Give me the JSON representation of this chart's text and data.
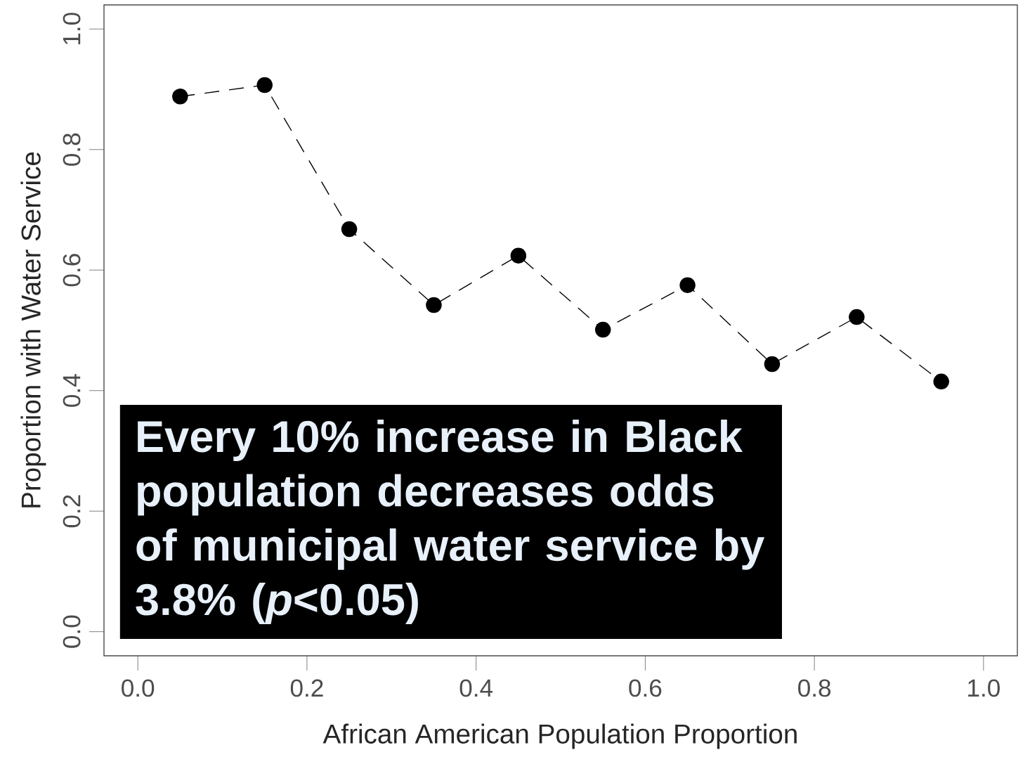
{
  "chart_data": {
    "type": "line",
    "xlabel": "African American Population Proportion",
    "ylabel": "Proportion with Water Service",
    "x": [
      0.05,
      0.15,
      0.25,
      0.35,
      0.45,
      0.55,
      0.65,
      0.75,
      0.85,
      0.95
    ],
    "values": [
      0.888,
      0.907,
      0.668,
      0.542,
      0.624,
      0.501,
      0.575,
      0.444,
      0.522,
      0.415
    ],
    "color": "#000000",
    "marker": "circle",
    "line_style": "dashed",
    "xlim": [
      -0.04,
      1.04
    ],
    "ylim": [
      -0.04,
      1.04
    ],
    "xticks": [
      {
        "value": 0,
        "label": "0.0"
      },
      {
        "value": 0.2,
        "label": "0.2"
      },
      {
        "value": 0.4,
        "label": "0.4"
      },
      {
        "value": 0.6,
        "label": "0.6"
      },
      {
        "value": 0.8,
        "label": "0.8"
      },
      {
        "value": 1,
        "label": "1.0"
      }
    ],
    "yticks": [
      {
        "value": 0,
        "label": "0.0"
      },
      {
        "value": 0.2,
        "label": "0.2"
      },
      {
        "value": 0.4,
        "label": "0.4"
      },
      {
        "value": 0.6,
        "label": "0.6"
      },
      {
        "value": 0.8,
        "label": "0.8"
      },
      {
        "value": 1,
        "label": "1.0"
      }
    ],
    "annotations": [
      "Every 10% increase in Black population decreases odds of municipal water service by 3.8% (*p*<0.05)"
    ]
  }
}
